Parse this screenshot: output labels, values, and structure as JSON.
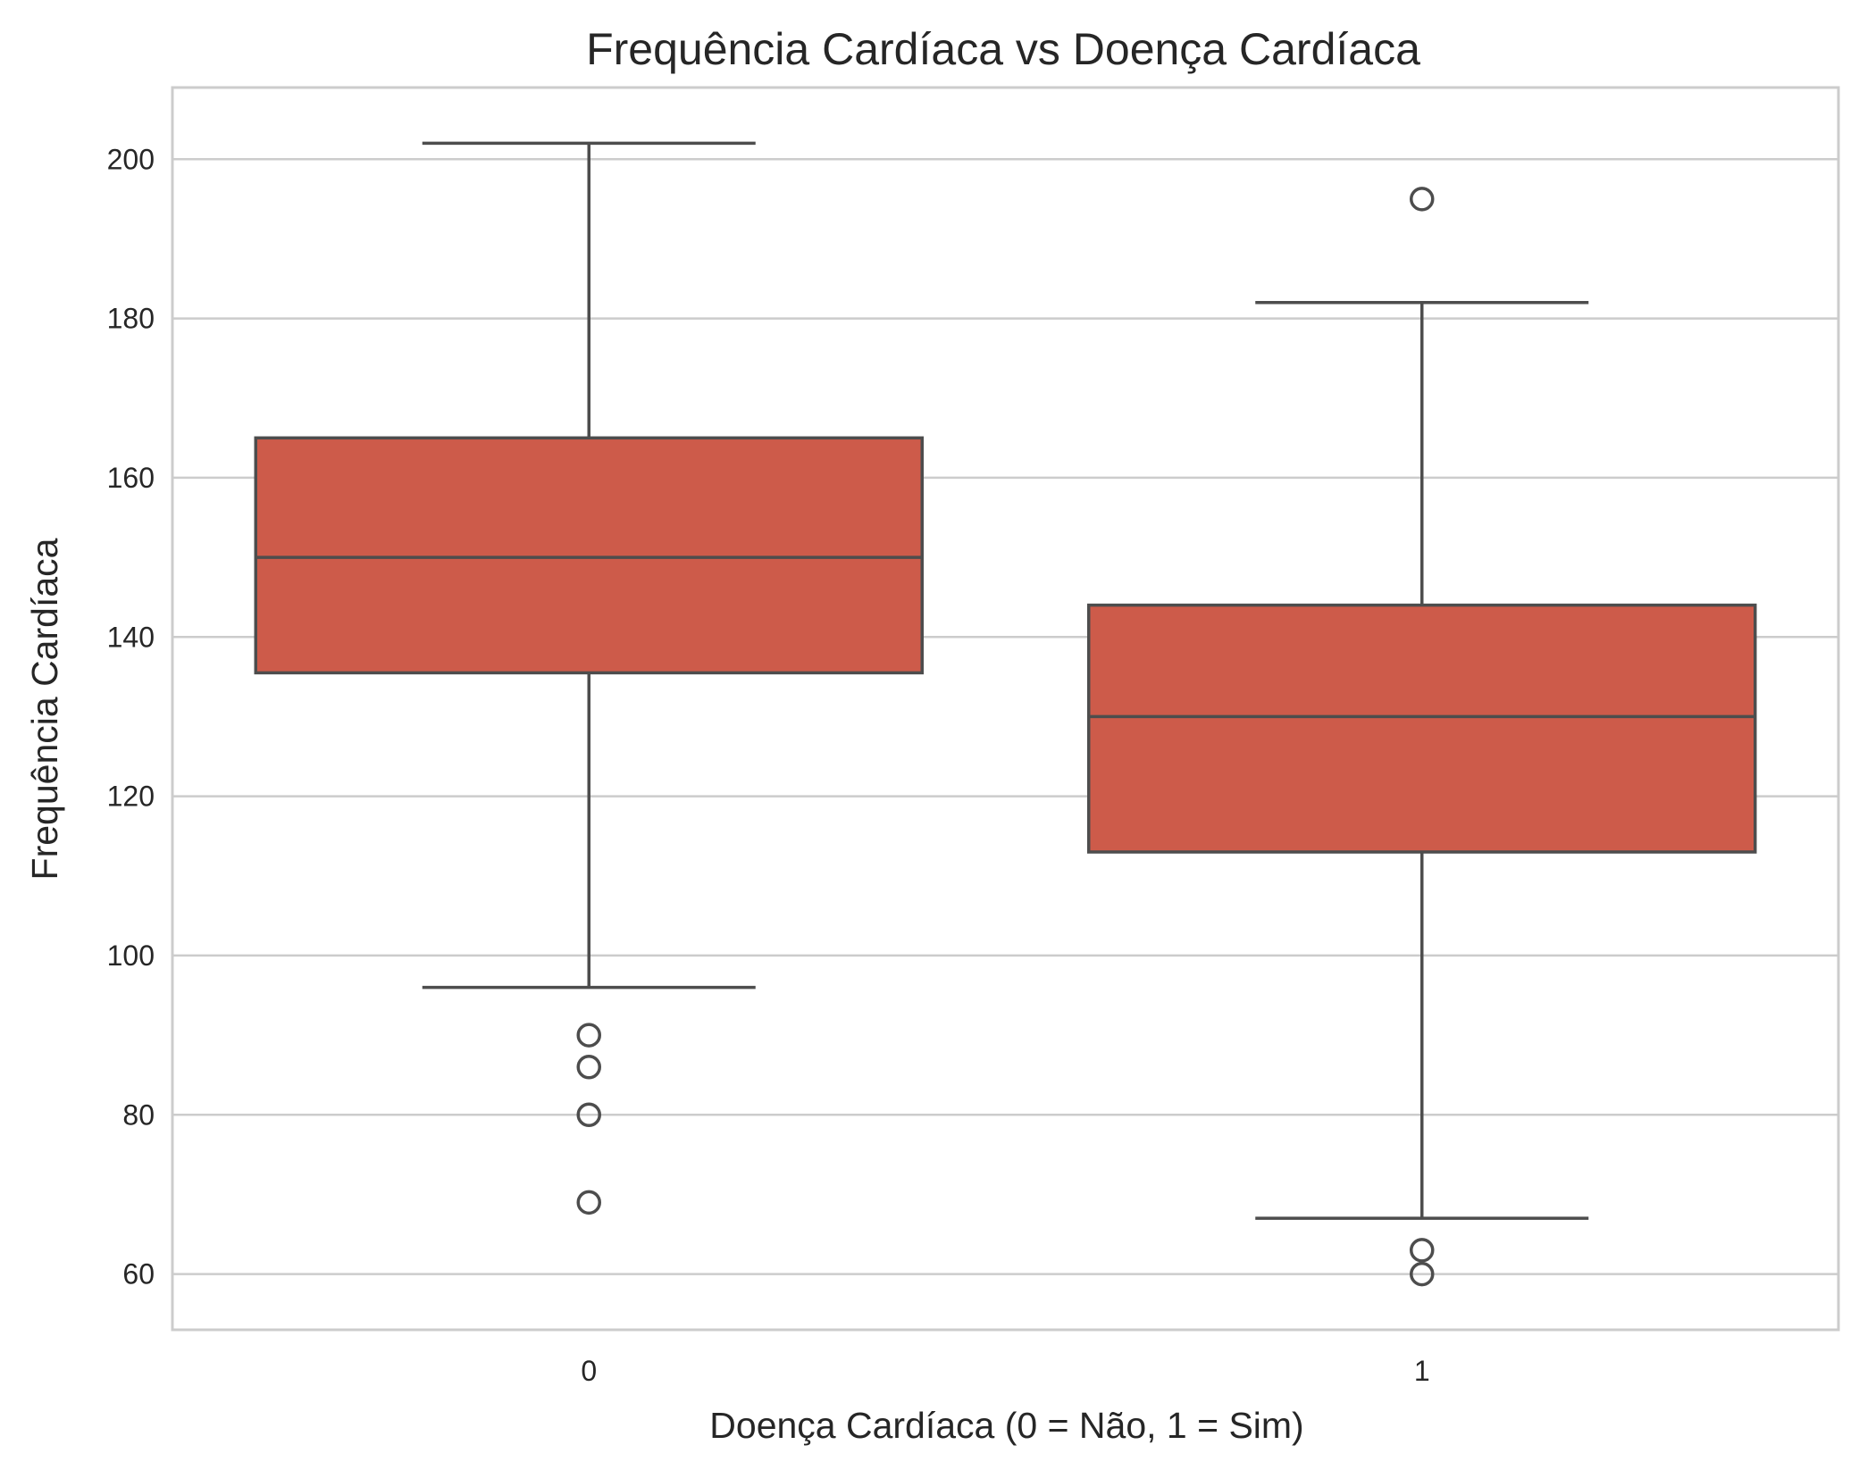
{
  "chart_data": {
    "type": "box",
    "title": "Frequência Cardíaca vs Doença Cardíaca",
    "xlabel": "Doença Cardíaca (0 = Não, 1 = Sim)",
    "ylabel": "Frequência Cardíaca",
    "categories": [
      "0",
      "1"
    ],
    "ylim": [
      53,
      209
    ],
    "yticks": [
      60,
      80,
      100,
      120,
      140,
      160,
      180,
      200
    ],
    "grid": "horizontal",
    "boxes": [
      {
        "category": "0",
        "whisker_low": 96,
        "q1": 135.5,
        "median": 150,
        "q3": 165,
        "whisker_high": 202,
        "outliers": [
          90,
          86,
          80,
          69
        ]
      },
      {
        "category": "1",
        "whisker_low": 67,
        "q1": 113,
        "median": 130,
        "q3": 144,
        "whisker_high": 182,
        "outliers": [
          195,
          63,
          60
        ]
      }
    ],
    "colors": {
      "box_fill": "#cd5b4a",
      "line": "#4d4d4d",
      "grid": "#cccccc",
      "frame": "#cccccc"
    }
  }
}
